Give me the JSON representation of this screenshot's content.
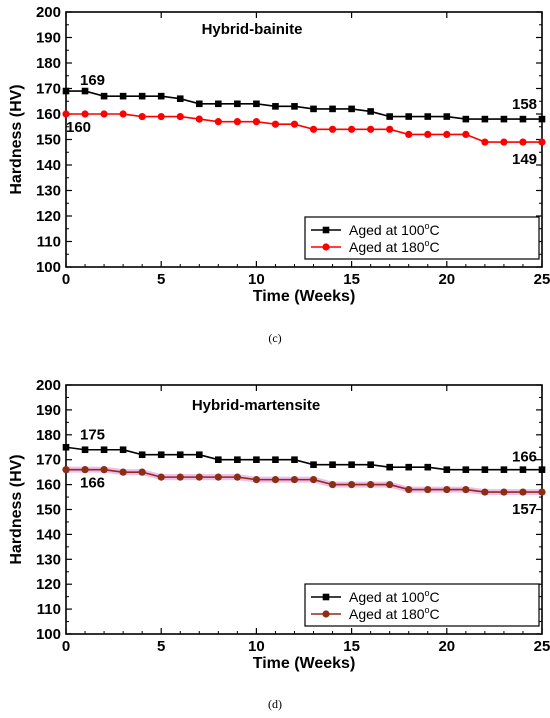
{
  "chart_data": [
    {
      "type": "line",
      "panel": "c",
      "title": "Hybrid-bainite",
      "xlabel": "Time (Weeks)",
      "ylabel": "Hardness (HV)",
      "xlim": [
        0,
        25
      ],
      "ylim": [
        100,
        200
      ],
      "x_ticks": [
        "0",
        "5",
        "10",
        "15",
        "20",
        "25"
      ],
      "y_ticks": [
        "100",
        "110",
        "120",
        "130",
        "140",
        "150",
        "160",
        "170",
        "180",
        "190",
        "200"
      ],
      "grid": false,
      "legend_position": "bottom-right",
      "x": [
        0,
        1,
        2,
        3,
        4,
        5,
        6,
        7,
        8,
        9,
        10,
        11,
        12,
        13,
        14,
        15,
        16,
        17,
        18,
        19,
        20,
        21,
        22,
        23,
        24,
        25
      ],
      "series": [
        {
          "name": "Aged at 100°C",
          "color": "#000000",
          "marker": "square",
          "band": false,
          "values": [
            169,
            169,
            167,
            167,
            167,
            167,
            166,
            164,
            164,
            164,
            164,
            163,
            163,
            162,
            162,
            162,
            161,
            159,
            159,
            159,
            159,
            158,
            158,
            158,
            158,
            158
          ]
        },
        {
          "name": "Aged at 180°C",
          "color": "#ff0000",
          "marker": "circle",
          "band": false,
          "values": [
            160,
            160,
            160,
            160,
            159,
            159,
            159,
            158,
            157,
            157,
            157,
            156,
            156,
            154,
            154,
            154,
            154,
            154,
            152,
            152,
            152,
            152,
            149,
            149,
            149,
            149
          ]
        }
      ],
      "annotations": [
        {
          "text": "169",
          "x": 0,
          "y": 169
        },
        {
          "text": "160",
          "x": 0,
          "y": 160
        },
        {
          "text": "158",
          "x": 25,
          "y": 158
        },
        {
          "text": "149",
          "x": 25,
          "y": 149
        }
      ],
      "legend_entries": [
        {
          "label": "Aged at 100",
          "sup": "o",
          "unit": "C"
        },
        {
          "label": "Aged at 180",
          "sup": "o",
          "unit": "C"
        }
      ],
      "caption": "(c)"
    },
    {
      "type": "line",
      "panel": "d",
      "title": "Hybrid-martensite",
      "xlabel": "Time (Weeks)",
      "ylabel": "Hardness (HV)",
      "xlim": [
        0,
        25
      ],
      "ylim": [
        100,
        200
      ],
      "x_ticks": [
        "0",
        "5",
        "10",
        "15",
        "20",
        "25"
      ],
      "y_ticks": [
        "100",
        "110",
        "120",
        "130",
        "140",
        "150",
        "160",
        "170",
        "180",
        "190",
        "200"
      ],
      "grid": false,
      "legend_position": "bottom-right",
      "x": [
        0,
        1,
        2,
        3,
        4,
        5,
        6,
        7,
        8,
        9,
        10,
        11,
        12,
        13,
        14,
        15,
        16,
        17,
        18,
        19,
        20,
        21,
        22,
        23,
        24,
        25
      ],
      "series": [
        {
          "name": "Aged at 100°C",
          "color": "#000000",
          "marker": "square",
          "band": false,
          "values": [
            175,
            174,
            174,
            174,
            172,
            172,
            172,
            172,
            170,
            170,
            170,
            170,
            170,
            168,
            168,
            168,
            168,
            167,
            167,
            167,
            166,
            166,
            166,
            166,
            166,
            166
          ]
        },
        {
          "name": "Aged at 180°C",
          "color": "#8b2e16",
          "marker": "circle",
          "band": true,
          "band_color": "#e9a6e6",
          "values": [
            166,
            166,
            166,
            165,
            165,
            163,
            163,
            163,
            163,
            163,
            162,
            162,
            162,
            162,
            160,
            160,
            160,
            160,
            158,
            158,
            158,
            158,
            157,
            157,
            157,
            157
          ]
        }
      ],
      "annotations": [
        {
          "text": "175",
          "x": 0,
          "y": 175
        },
        {
          "text": "166",
          "x": 0,
          "y": 166
        },
        {
          "text": "166",
          "x": 25,
          "y": 166
        },
        {
          "text": "157",
          "x": 25,
          "y": 157
        }
      ],
      "legend_entries": [
        {
          "label": "Aged at 100",
          "sup": "o",
          "unit": "C"
        },
        {
          "label": "Aged at 180",
          "sup": "o",
          "unit": "C"
        }
      ],
      "caption": "(d)"
    }
  ]
}
